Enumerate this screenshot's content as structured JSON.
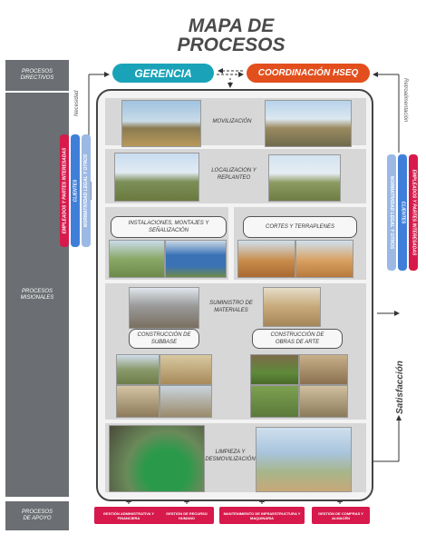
{
  "title": {
    "line1": "MAPA DE",
    "line2": "PROCESOS"
  },
  "sidebar": {
    "directivos": "PROCESOS DIRECTIVOS",
    "misionales": "PROCESOS MISIONALES",
    "apoyo": "PROCESOS DE APOYO"
  },
  "header": {
    "gerencia": "GERENCIA",
    "coordinacion": "COORDINACIÓN HSEQ",
    "necesidad": "Necesidad",
    "retroalimentacion": "Retroalimentación",
    "satisfaccion": "Satisfacción"
  },
  "stakeholders": {
    "empleados": "EMPLEADOS Y PARTES INTERESADAS",
    "clientes": "CLIENTES",
    "normatividad": "NORMATIVIDAD LEGAL Y OTROS"
  },
  "processes": {
    "movilizacion": "MOVILIZACIÓN",
    "localizacion": "LOCALIZACION Y REPLANTEO",
    "instalaciones": "INSTALACIONES, MONTAJES Y SEÑALIZACIÓN",
    "cortes": "CORTES Y TERRAPLENES",
    "suministro": "SUMINISTRO DE MATERIALES",
    "subbase": "CONSTRUCCIÓN DE SUBBASE",
    "obras": "CONSTRUCCIÓN DE OBRAS DE ARTE",
    "limpieza": "LIMPIEZA Y DESMOVILIZACIÓN"
  },
  "support": [
    "GESTIÓN ADMINISTRATIVA Y FINANCIERA",
    "GESTIÓN DE RECURSO HUMANO",
    "MANTENIMIENTO DE INFRAESTRUCTURA Y MAQUINARIA",
    "GESTIÓN DE COMPRAS Y ALMACÉN"
  ],
  "colors": {
    "teal": "#1aa3b8",
    "orange": "#e24f1d",
    "magenta": "#d7194b",
    "blue": "#3f7fd9",
    "gray_sidebar": "#6b6e72"
  }
}
